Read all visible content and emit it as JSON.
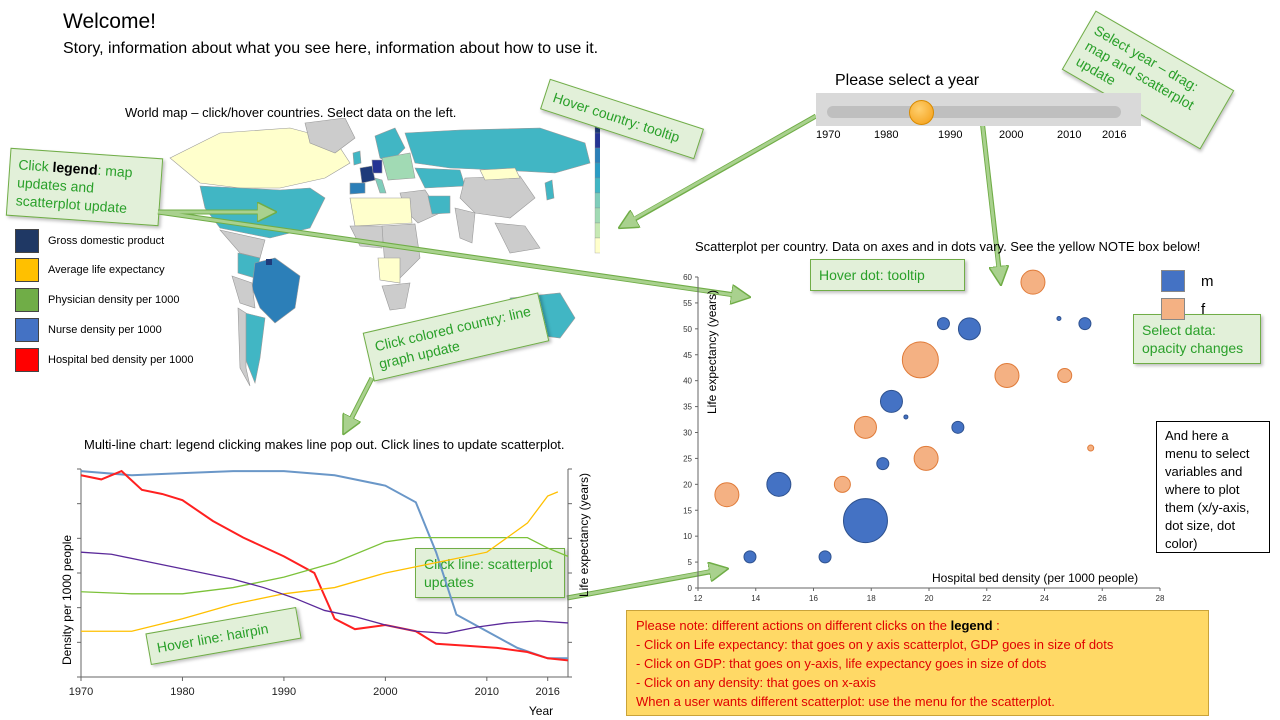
{
  "header": {
    "title": "Welcome!",
    "subtitle": "Story, information about what you see here, information about how to use it."
  },
  "map": {
    "caption": "World map – click/hover countries. Select data on the left.",
    "scale_ticks": [
      "46",
      "36",
      "31",
      "26",
      "21",
      "16",
      "11",
      "6",
      "1"
    ],
    "scale_colors": [
      "#1e3a7a",
      "#253494",
      "#2c7fb8",
      "#2a9cc4",
      "#41b6c4",
      "#7fcdbb",
      "#a1dab4",
      "#c7e9b4",
      "#ffffcc"
    ]
  },
  "legend": {
    "items": [
      {
        "label": "Gross domestic product",
        "color": "#1f3864"
      },
      {
        "label": "Average life expectancy",
        "color": "#ffc000"
      },
      {
        "label": "Physician density per 1000",
        "color": "#70ad47"
      },
      {
        "label": "Nurse density per 1000",
        "color": "#4472c4"
      },
      {
        "label": "Hospital bed density per 1000",
        "color": "#ff0000"
      }
    ]
  },
  "notes": {
    "hover_country": "Hover country: tooltip",
    "click_legend_pre": "Click ",
    "click_legend_bold": "legend",
    "click_legend_post": ": map updates and scatterplot update",
    "click_country": "Click colored country: line graph update",
    "select_year": "Select year – drag: map and scatterplot update",
    "hover_dot": "Hover dot: tooltip",
    "select_data": "Select data: opacity changes",
    "click_line": "Click line: scatterplot updates",
    "hover_line": "Hover line: hairpin"
  },
  "slider": {
    "label": "Please select a year",
    "ticks": [
      "1970",
      "1980",
      "1990",
      "2000",
      "2010",
      "2016"
    ],
    "value": 1985
  },
  "scatter": {
    "caption": "Scatterplot per country.  Data on axes and in dots vary. See the yellow NOTE box below!",
    "legend": [
      {
        "label": "m",
        "color": "#4472c4"
      },
      {
        "label": "f",
        "color": "#f4b183"
      }
    ]
  },
  "menu_box": {
    "text": "And here a menu to select variables and where to plot them (x/y-axis, dot size, dot color)"
  },
  "line_chart": {
    "caption": "Multi-line chart: legend clicking makes line pop out. Click lines to update scatterplot."
  },
  "yellow_note": {
    "intro_pre": "Please note: different actions on different clicks on the ",
    "intro_bold": "legend",
    "intro_post": " :",
    "bullets": [
      "-    Click on Life expectancy: that goes on y axis scatterplot, GDP goes in size of dots",
      "-    Click on GDP: that goes on y-axis, life expectancy goes in size of dots",
      "-    Click on any density: that goes on x-axis"
    ],
    "outro": "When a user wants different scatterplot: use the menu for the scatterplot."
  },
  "chart_data": [
    {
      "type": "scatter",
      "title": "",
      "xlabel": "Hospital bed density (per 1000 people)",
      "ylabel": "Life expectancy (years)",
      "xlim": [
        12,
        28
      ],
      "ylim": [
        0,
        60
      ],
      "xticks": [
        12,
        14,
        16,
        18,
        20,
        22,
        24,
        26,
        28
      ],
      "yticks": [
        0,
        5,
        10,
        15,
        20,
        25,
        30,
        35,
        40,
        45,
        50,
        55,
        60
      ],
      "series": [
        {
          "name": "m",
          "color": "#4472c4",
          "points": [
            {
              "x": 13.8,
              "y": 6,
              "r": 6
            },
            {
              "x": 14.8,
              "y": 20,
              "r": 12
            },
            {
              "x": 16.4,
              "y": 6,
              "r": 6
            },
            {
              "x": 17.8,
              "y": 13,
              "r": 22
            },
            {
              "x": 18.4,
              "y": 24,
              "r": 6
            },
            {
              "x": 18.7,
              "y": 36,
              "r": 11
            },
            {
              "x": 19.2,
              "y": 33,
              "r": 2
            },
            {
              "x": 20.5,
              "y": 51,
              "r": 6
            },
            {
              "x": 21.0,
              "y": 31,
              "r": 6
            },
            {
              "x": 21.4,
              "y": 50,
              "r": 11
            },
            {
              "x": 24.5,
              "y": 52,
              "r": 2
            },
            {
              "x": 25.4,
              "y": 51,
              "r": 6
            }
          ]
        },
        {
          "name": "f",
          "color": "#f4b183",
          "points": [
            {
              "x": 13.0,
              "y": 18,
              "r": 12
            },
            {
              "x": 17.0,
              "y": 20,
              "r": 8
            },
            {
              "x": 17.8,
              "y": 31,
              "r": 11
            },
            {
              "x": 19.7,
              "y": 44,
              "r": 18
            },
            {
              "x": 19.9,
              "y": 25,
              "r": 12
            },
            {
              "x": 22.7,
              "y": 41,
              "r": 12
            },
            {
              "x": 23.6,
              "y": 59,
              "r": 12
            },
            {
              "x": 24.7,
              "y": 41,
              "r": 7
            },
            {
              "x": 25.6,
              "y": 27,
              "r": 3
            }
          ]
        }
      ]
    },
    {
      "type": "line",
      "title": "",
      "xlabel": "Year",
      "ylabel": "Density per 1000 people",
      "y2label": "Life expectancy (years)",
      "xlim": [
        1970,
        2018
      ],
      "ylim": [
        0,
        100
      ],
      "xticks": [
        1970,
        1980,
        1990,
        2000,
        2010,
        2016
      ],
      "series": [
        {
          "name": "Nurse density per 1000",
          "color": "#6a97c8",
          "x": [
            1970,
            1975,
            1980,
            1985,
            1990,
            1995,
            2000,
            2003,
            2005,
            2007,
            2010,
            2013,
            2016,
            2018
          ],
          "y": [
            99,
            97,
            98,
            99,
            99,
            97,
            92,
            84,
            60,
            30,
            22,
            14,
            9,
            9
          ]
        },
        {
          "name": "Hospital bed density per 1000",
          "color": "#ff2020",
          "x": [
            1970,
            1972,
            1974,
            1976,
            1978,
            1980,
            1983,
            1986,
            1990,
            1993,
            1995,
            1997,
            2000,
            2003,
            2005,
            2008,
            2011,
            2014,
            2016,
            2018
          ],
          "y": [
            97,
            95,
            99,
            90,
            88,
            85,
            75,
            67,
            58,
            50,
            28,
            23,
            25,
            22,
            16,
            15,
            14,
            12,
            9,
            8
          ]
        },
        {
          "name": "Physician density per 1000",
          "color": "#7cc23a",
          "x": [
            1970,
            1975,
            1980,
            1985,
            1990,
            1995,
            2000,
            2003,
            2006,
            2010,
            2014,
            2016,
            2018
          ],
          "y": [
            41,
            40,
            40,
            43,
            48,
            55,
            65,
            67,
            67,
            67,
            67,
            62,
            58
          ]
        },
        {
          "name": "Average life expectancy",
          "color": "#ffc000",
          "x": [
            1970,
            1975,
            1980,
            1985,
            1990,
            1995,
            2000,
            2005,
            2010,
            2014,
            2016,
            2017
          ],
          "y": [
            22,
            22,
            28,
            35,
            40,
            43,
            50,
            55,
            60,
            74,
            87,
            89
          ]
        },
        {
          "name": "Gross domestic product",
          "color": "#5b2a9a",
          "x": [
            1970,
            1973,
            1976,
            1979,
            1982,
            1985,
            1988,
            1991,
            1994,
            1997,
            2000,
            2003,
            2006,
            2009,
            2012,
            2015,
            2018
          ],
          "y": [
            60,
            59,
            56,
            53,
            50,
            47,
            43,
            38,
            32,
            29,
            25,
            22,
            21,
            24,
            26,
            27,
            26
          ]
        }
      ]
    }
  ]
}
